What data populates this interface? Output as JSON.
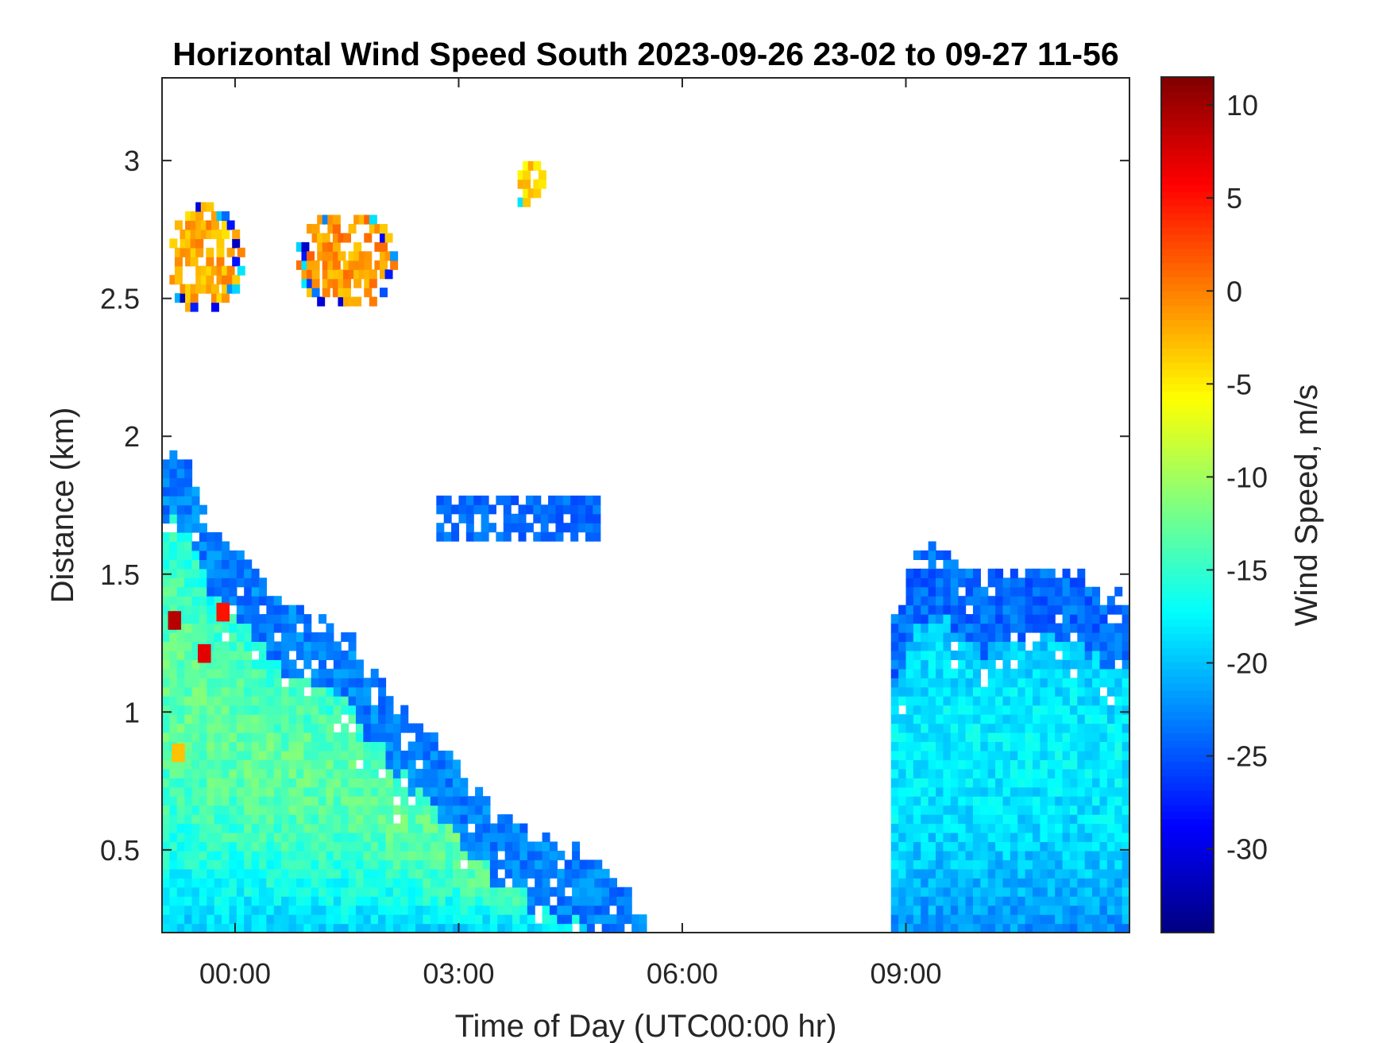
{
  "chart_data": {
    "type": "heatmap",
    "title": "Horizontal Wind Speed South 2023-09-26 23-02 to 09-27 11-56",
    "xlabel": "Time of Day (UTC00:00 hr)",
    "ylabel": "Distance (km)",
    "xlim_hours": [
      -0.98,
      12.0
    ],
    "ylim_km": [
      0.2,
      3.3
    ],
    "x_ticks": [
      {
        "value": 0,
        "label": "00:00"
      },
      {
        "value": 3,
        "label": "03:00"
      },
      {
        "value": 6,
        "label": "06:00"
      },
      {
        "value": 9,
        "label": "09:00"
      }
    ],
    "y_ticks": [
      {
        "value": 0.5,
        "label": "0.5"
      },
      {
        "value": 1.0,
        "label": "1"
      },
      {
        "value": 1.5,
        "label": "1.5"
      },
      {
        "value": 2.0,
        "label": "2"
      },
      {
        "value": 2.5,
        "label": "2.5"
      },
      {
        "value": 3.0,
        "label": "3"
      }
    ],
    "colorbar": {
      "label": "Wind Speed, m/s",
      "colormap": "jet",
      "clim": [
        -34.5,
        11.5
      ],
      "ticks": [
        {
          "value": 10,
          "label": "10"
        },
        {
          "value": 5,
          "label": "5"
        },
        {
          "value": 0,
          "label": "0"
        },
        {
          "value": -5,
          "label": "-5"
        },
        {
          "value": -10,
          "label": "-10"
        },
        {
          "value": -15,
          "label": "-15"
        },
        {
          "value": -20,
          "label": "-20"
        },
        {
          "value": -25,
          "label": "-25"
        },
        {
          "value": -30,
          "label": "-30"
        }
      ]
    },
    "cell_size": {
      "dt_hours": 0.1,
      "dz_km": 0.033
    },
    "regions": [
      {
        "name": "lower-boundary-layer",
        "t_start": -0.98,
        "t_end": 5.5,
        "z_min": 0.2,
        "top_km_by_time": [
          [
            -0.98,
            1.95
          ],
          [
            -0.7,
            1.9
          ],
          [
            -0.5,
            1.72
          ],
          [
            0.0,
            1.55
          ],
          [
            0.5,
            1.4
          ],
          [
            1.0,
            1.35
          ],
          [
            1.5,
            1.25
          ],
          [
            2.0,
            1.05
          ],
          [
            2.5,
            0.9
          ],
          [
            3.0,
            0.75
          ],
          [
            3.5,
            0.62
          ],
          [
            4.0,
            0.52
          ],
          [
            4.5,
            0.48
          ],
          [
            5.0,
            0.42
          ],
          [
            5.5,
            0.25
          ]
        ],
        "speed_near_top": -23,
        "speed_core": -13,
        "speed_surface": -19
      },
      {
        "name": "morning-boundary-layer",
        "t_start": 8.8,
        "t_end": 12.0,
        "z_min": 0.2,
        "top_km_by_time": [
          [
            8.8,
            1.3
          ],
          [
            9.0,
            1.5
          ],
          [
            9.4,
            1.58
          ],
          [
            9.8,
            1.45
          ],
          [
            10.4,
            1.48
          ],
          [
            10.8,
            1.52
          ],
          [
            11.2,
            1.47
          ],
          [
            11.6,
            1.42
          ],
          [
            12.0,
            1.38
          ]
        ],
        "speed_near_top": -24,
        "speed_core": -18,
        "speed_surface": -22
      },
      {
        "name": "mid-level-layer",
        "t_start": 2.7,
        "t_end": 4.8,
        "z_min": 1.62,
        "z_max": 1.78,
        "speed": -24
      },
      {
        "name": "cloud-patch-1",
        "center_t": -0.45,
        "center_z": 2.62,
        "radius_t": 0.5,
        "radius_z": 0.2,
        "speed": -2
      },
      {
        "name": "cloud-patch-2",
        "center_t": 1.45,
        "center_z": 2.62,
        "radius_t": 0.7,
        "radius_z": 0.18,
        "speed": -1
      },
      {
        "name": "cloud-patch-3",
        "center_t": 3.92,
        "center_z": 2.9,
        "radius_t": 0.2,
        "radius_z": 0.1,
        "speed": -4
      }
    ],
    "embedded_features": [
      {
        "t": -0.85,
        "z": 0.82,
        "speed": -3
      },
      {
        "t": -0.9,
        "z": 1.3,
        "speed": 9
      },
      {
        "t": -0.5,
        "z": 1.18,
        "speed": 7
      },
      {
        "t": -0.25,
        "z": 1.33,
        "speed": 5
      }
    ]
  }
}
